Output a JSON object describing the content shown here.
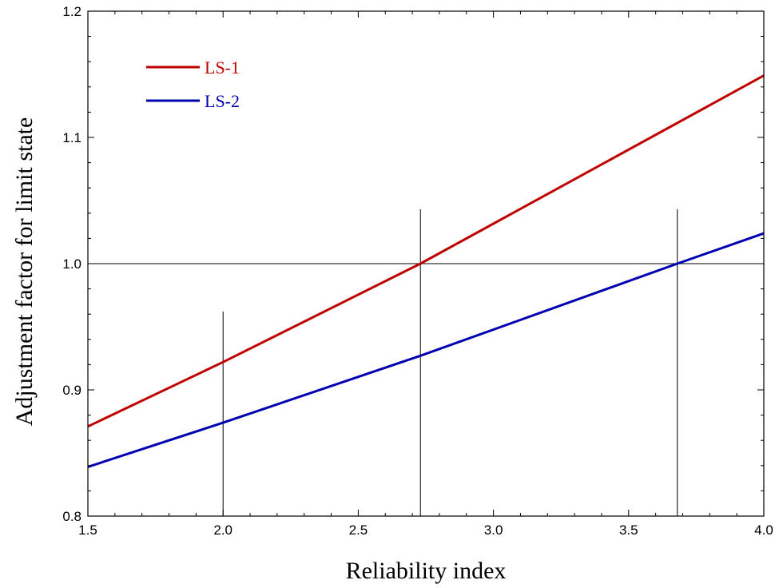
{
  "chart_data": {
    "type": "line",
    "xlabel": "Reliability index",
    "ylabel": "Adjustment factor for limit state",
    "xlim": [
      1.5,
      4.0
    ],
    "ylim": [
      0.8,
      1.2
    ],
    "x_ticks": [
      "1.5",
      "2.0",
      "2.5",
      "3.0",
      "3.5",
      "4.0"
    ],
    "y_ticks": [
      "0.8",
      "0.9",
      "1.0",
      "1.1",
      "1.2"
    ],
    "grid": false,
    "legend_position": "top-left",
    "series": [
      {
        "name": "LS-1",
        "color": "#c00000",
        "x": [
          1.5,
          2.0,
          2.73,
          4.0
        ],
        "y": [
          0.871,
          0.922,
          1.0,
          1.149
        ]
      },
      {
        "name": "LS-2",
        "color": "#0000b0",
        "x": [
          1.5,
          2.0,
          2.73,
          3.68,
          4.0
        ],
        "y": [
          0.839,
          0.874,
          0.927,
          1.0,
          1.024
        ]
      }
    ],
    "reference_lines": {
      "horizontal_y": 1.0,
      "vertical": [
        {
          "x": 2.0,
          "y_top": 0.962
        },
        {
          "x": 2.73,
          "y_top": 1.043
        },
        {
          "x": 3.68,
          "y_top": 1.043
        }
      ]
    }
  }
}
